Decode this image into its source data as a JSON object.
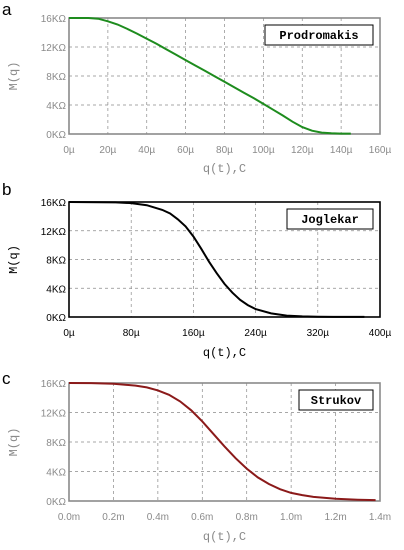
{
  "chart_data": [
    {
      "panel_label": "a",
      "type": "line",
      "legend": "Prodromakis",
      "legend_placement": "top-right",
      "xlabel": "q(t),C",
      "ylabel": "M(q)",
      "xlim": [
        0,
        160
      ],
      "ylim": [
        0,
        16
      ],
      "grid": true,
      "axis_style": "gray",
      "x_ticks": [
        "0µ",
        "20µ",
        "40µ",
        "60µ",
        "80µ",
        "100µ",
        "120µ",
        "140µ",
        "160µ"
      ],
      "y_ticks": [
        "0KΩ",
        "4KΩ",
        "8KΩ",
        "12KΩ",
        "16KΩ"
      ],
      "series": [
        {
          "color": "#1e8c1e",
          "x": [
            0,
            10,
            15,
            20,
            25,
            30,
            35,
            40,
            45,
            50,
            55,
            60,
            65,
            70,
            75,
            80,
            85,
            90,
            95,
            100,
            105,
            110,
            115,
            120,
            125,
            130,
            135,
            140,
            145
          ],
          "y": [
            16,
            16,
            15.9,
            15.55,
            15.1,
            14.5,
            13.85,
            13.15,
            12.45,
            11.7,
            10.95,
            10.2,
            9.45,
            8.7,
            7.95,
            7.2,
            6.45,
            5.7,
            4.95,
            4.15,
            3.35,
            2.55,
            1.7,
            0.95,
            0.45,
            0.2,
            0.1,
            0.05,
            0.05
          ]
        }
      ]
    },
    {
      "panel_label": "b",
      "type": "line",
      "legend": "Joglekar",
      "legend_placement": "top-right",
      "xlabel": "q(t),C",
      "ylabel": "M(q)",
      "xlim": [
        0,
        400
      ],
      "ylim": [
        0,
        16
      ],
      "grid": true,
      "axis_style": "black",
      "x_ticks": [
        "0µ",
        "80µ",
        "160µ",
        "240µ",
        "320µ",
        "400µ"
      ],
      "y_ticks": [
        "0KΩ",
        "4KΩ",
        "8KΩ",
        "12KΩ",
        "16KΩ"
      ],
      "series": [
        {
          "color": "#000000",
          "x": [
            0,
            60,
            80,
            100,
            120,
            130,
            140,
            150,
            160,
            170,
            180,
            190,
            200,
            210,
            220,
            230,
            240,
            260,
            280,
            300,
            320,
            340,
            360,
            380
          ],
          "y": [
            16,
            15.95,
            15.85,
            15.55,
            14.9,
            14.4,
            13.6,
            12.6,
            11.2,
            9.5,
            7.7,
            6.1,
            4.6,
            3.4,
            2.4,
            1.65,
            1.1,
            0.5,
            0.2,
            0.08,
            0.03,
            0.01,
            0.01,
            0.01
          ]
        }
      ]
    },
    {
      "panel_label": "c",
      "type": "line",
      "legend": "Strukov",
      "legend_placement": "top-right",
      "xlabel": "q(t),C",
      "ylabel": "M(q)",
      "xlim": [
        0,
        1.4
      ],
      "ylim": [
        0,
        16
      ],
      "grid": true,
      "axis_style": "gray",
      "x_ticks": [
        "0.0m",
        "0.2m",
        "0.4m",
        "0.6m",
        "0.8m",
        "1.0m",
        "1.2m",
        "1.4m"
      ],
      "y_ticks": [
        "0KΩ",
        "4KΩ",
        "8KΩ",
        "12KΩ",
        "16KΩ"
      ],
      "series": [
        {
          "color": "#8b1a1a",
          "x": [
            0,
            0.1,
            0.2,
            0.3,
            0.35,
            0.4,
            0.45,
            0.5,
            0.55,
            0.6,
            0.65,
            0.7,
            0.75,
            0.8,
            0.85,
            0.9,
            0.95,
            1.0,
            1.05,
            1.1,
            1.2,
            1.3,
            1.38
          ],
          "y": [
            16,
            15.98,
            15.9,
            15.65,
            15.4,
            15.0,
            14.4,
            13.5,
            12.3,
            10.8,
            9.1,
            7.4,
            5.8,
            4.4,
            3.2,
            2.3,
            1.6,
            1.1,
            0.8,
            0.55,
            0.3,
            0.18,
            0.12
          ]
        }
      ]
    }
  ]
}
